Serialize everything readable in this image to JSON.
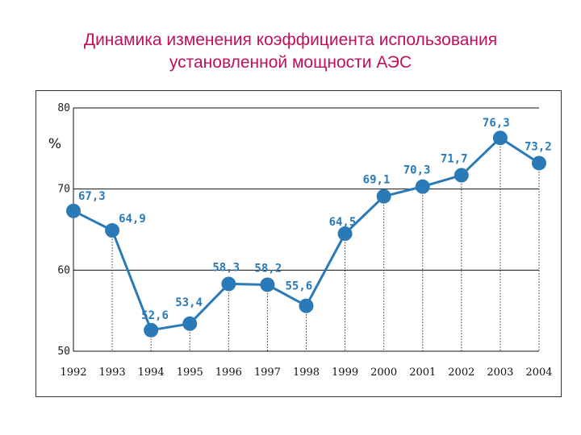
{
  "header": {
    "title_line1": "Динамика изменения коэффициента использования",
    "title_line2": "установленной мощности АЭС"
  },
  "chart_data": {
    "type": "line",
    "title": "Динамика изменения коэффициента использования установленной мощности АЭС",
    "unit_label": "%",
    "xlabel": "",
    "ylabel": "",
    "categories": [
      "1992",
      "1993",
      "1994",
      "1995",
      "1996",
      "1997",
      "1998",
      "1999",
      "2000",
      "2001",
      "2002",
      "2003",
      "2004"
    ],
    "series": [
      {
        "values": [
          67.3,
          64.9,
          52.6,
          53.4,
          58.3,
          58.2,
          55.6,
          64.5,
          69.1,
          70.3,
          71.7,
          76.3,
          73.2
        ],
        "labels": [
          "67,3",
          "64,9",
          "52,6",
          "53,4",
          "58,3",
          "58,2",
          "55,6",
          "64,5",
          "69,1",
          "70,3",
          "71,7",
          "76,3",
          "73,2"
        ]
      }
    ],
    "ylim": [
      50,
      80
    ],
    "yticks": [
      "50",
      "60",
      "70",
      "80"
    ],
    "grid": true,
    "drop_lines": true,
    "colors": {
      "line": "#2a7ab8",
      "marker": "#2a7ab8",
      "labels": "#2a7ab8",
      "title": "#c0105c"
    }
  }
}
